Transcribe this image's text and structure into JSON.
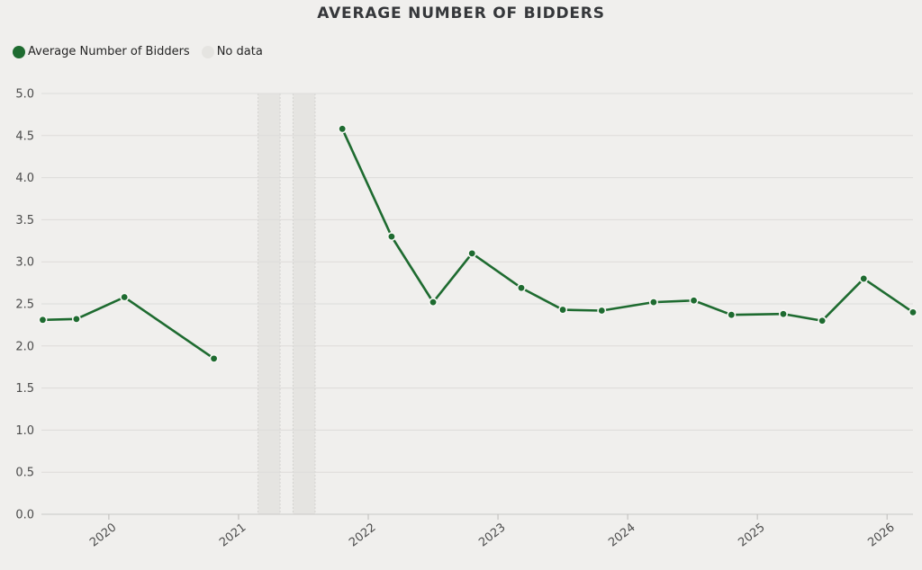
{
  "title": "AVERAGE NUMBER OF BIDDERS",
  "legend": {
    "series_label": "Average Number of Bidders",
    "no_data_label": "No data",
    "series_color": "#1e6b30",
    "no_data_color": "#e5e4e1"
  },
  "chart_data": {
    "type": "line",
    "title": "AVERAGE NUMBER OF BIDDERS",
    "xlabel": "",
    "ylabel": "",
    "grid": "horizontal",
    "legend_position": "top-left",
    "xlim": [
      2019.48,
      2026.2
    ],
    "ylim": [
      0,
      5
    ],
    "x_ticks": [
      2020,
      2021,
      2022,
      2023,
      2024,
      2025,
      2026
    ],
    "y_ticks": [
      "0.0",
      "0.5",
      "1.0",
      "1.5",
      "2.0",
      "2.5",
      "3.0",
      "3.5",
      "4.0",
      "4.5",
      "5.0"
    ],
    "no_data_color": "#e5e4e1",
    "no_data_bands": [
      {
        "x0": 2021.15,
        "x1": 2021.32
      },
      {
        "x0": 2021.42,
        "x1": 2021.59
      }
    ],
    "series": [
      {
        "name": "Average Number of Bidders",
        "color": "#1e6b30",
        "segments": [
          {
            "x": [
              2019.49,
              2019.75,
              2020.12,
              2020.81
            ],
            "y": [
              2.31,
              2.32,
              2.58,
              1.85
            ]
          },
          {
            "x": [
              2021.8,
              2022.18,
              2022.5,
              2022.8,
              2023.18,
              2023.5,
              2023.8,
              2024.2,
              2024.51,
              2024.8,
              2025.2,
              2025.5,
              2025.82,
              2026.2
            ],
            "y": [
              4.58,
              3.3,
              2.52,
              3.1,
              2.69,
              2.43,
              2.42,
              2.52,
              2.54,
              2.37,
              2.38,
              2.3,
              2.8,
              2.4
            ]
          }
        ]
      }
    ]
  }
}
